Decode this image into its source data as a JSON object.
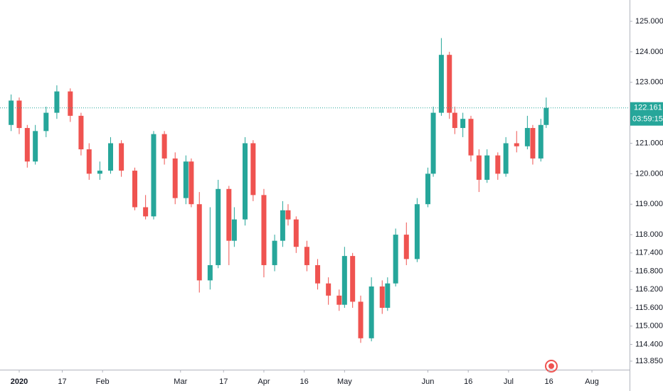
{
  "chart_data": {
    "type": "candlestick",
    "x": [
      -3,
      0,
      3,
      6,
      10,
      14,
      19,
      23,
      26,
      30,
      34,
      38,
      43,
      47,
      50,
      54,
      58,
      62,
      64,
      67,
      71,
      74,
      78,
      80,
      84,
      87,
      91,
      95,
      98,
      100,
      103,
      107,
      111,
      115,
      119,
      121,
      124,
      127,
      131,
      135,
      137,
      140,
      144,
      148,
      152,
      154,
      157,
      160,
      162,
      165,
      168,
      171,
      174,
      178,
      181,
      185,
      189,
      191,
      194,
      196
    ],
    "open": [
      121.6,
      122.4,
      121.5,
      120.4,
      121.4,
      122.0,
      122.7,
      121.9,
      120.8,
      120.0,
      120.1,
      121.0,
      120.1,
      118.9,
      118.6,
      121.3,
      120.5,
      119.2,
      120.4,
      119.0,
      116.5,
      117.0,
      119.5,
      117.8,
      118.5,
      121.0,
      119.3,
      117.0,
      117.8,
      118.8,
      118.5,
      117.6,
      117.0,
      116.4,
      116.0,
      115.7,
      117.3,
      115.8,
      114.6,
      116.3,
      115.6,
      116.4,
      118.0,
      117.2,
      119.0,
      120.0,
      122.0,
      123.9,
      122.0,
      121.5,
      121.8,
      120.6,
      119.8,
      120.6,
      120.0,
      121.0,
      120.9,
      121.5,
      120.5,
      121.6
    ],
    "high": [
      122.6,
      122.5,
      121.6,
      121.6,
      122.2,
      122.9,
      122.8,
      122.0,
      121.0,
      120.4,
      121.2,
      121.1,
      120.2,
      119.3,
      121.4,
      121.4,
      120.7,
      120.6,
      120.5,
      119.4,
      118.9,
      119.8,
      119.6,
      118.9,
      121.2,
      121.1,
      119.5,
      118.0,
      119.1,
      119.0,
      118.6,
      117.8,
      117.2,
      116.6,
      116.2,
      117.6,
      117.4,
      116.0,
      116.6,
      116.5,
      116.6,
      118.2,
      118.4,
      119.2,
      120.2,
      122.2,
      124.45,
      124.0,
      122.2,
      122.0,
      121.9,
      120.8,
      120.8,
      120.7,
      121.2,
      121.4,
      121.9,
      121.6,
      121.8,
      122.5
    ],
    "low": [
      121.4,
      121.3,
      120.2,
      120.3,
      121.2,
      121.8,
      121.7,
      120.6,
      119.8,
      119.8,
      120.0,
      119.9,
      118.8,
      118.5,
      118.5,
      120.3,
      119.0,
      119.0,
      118.9,
      116.1,
      116.2,
      116.9,
      117.0,
      117.6,
      118.3,
      119.1,
      116.6,
      116.8,
      117.6,
      118.3,
      117.4,
      116.8,
      116.2,
      115.7,
      115.5,
      115.6,
      115.6,
      114.45,
      114.5,
      115.4,
      115.5,
      116.3,
      117.0,
      117.1,
      118.9,
      119.9,
      121.9,
      121.8,
      121.3,
      121.2,
      120.4,
      119.4,
      119.7,
      119.8,
      119.9,
      120.7,
      120.8,
      120.3,
      120.4,
      121.5
    ],
    "close": [
      122.4,
      121.5,
      120.4,
      121.4,
      122.0,
      122.7,
      121.9,
      120.8,
      120.0,
      120.1,
      121.0,
      120.1,
      118.9,
      118.6,
      121.3,
      120.5,
      119.2,
      120.4,
      119.0,
      116.5,
      117.0,
      119.5,
      117.8,
      118.5,
      121.0,
      119.3,
      117.0,
      117.8,
      118.8,
      118.5,
      117.6,
      117.0,
      116.4,
      116.0,
      115.7,
      117.3,
      115.8,
      114.6,
      116.3,
      115.6,
      116.4,
      118.0,
      117.2,
      119.0,
      120.0,
      122.0,
      123.9,
      122.0,
      121.5,
      121.8,
      120.6,
      119.8,
      120.6,
      120.0,
      121.0,
      120.9,
      121.5,
      120.5,
      121.6,
      122.161
    ],
    "up_color": "#26a69a",
    "down_color": "#ef5350",
    "countdown": "03:59:15",
    "xlim": [
      -7.14,
      227
    ],
    "xticks": [
      {
        "value": 0,
        "label": "2020"
      },
      {
        "value": 16,
        "label": "17"
      },
      {
        "value": 31,
        "label": "Feb"
      },
      {
        "value": 60,
        "label": "Mar"
      },
      {
        "value": 76,
        "label": "17"
      },
      {
        "value": 91,
        "label": "Apr"
      },
      {
        "value": 106,
        "label": "16"
      },
      {
        "value": 121,
        "label": "May"
      },
      {
        "value": 152,
        "label": "Jun"
      },
      {
        "value": 167,
        "label": "16"
      },
      {
        "value": 182,
        "label": "Jul"
      },
      {
        "value": 197,
        "label": "16"
      },
      {
        "value": 213,
        "label": "Aug"
      }
    ],
    "ylim": [
      113.57,
      125.7
    ],
    "yticks": [
      {
        "value": 125,
        "label": "125.000"
      },
      {
        "value": 124,
        "label": "124.000"
      },
      {
        "value": 123,
        "label": "123.000"
      },
      {
        "value": 121,
        "label": "121.000"
      },
      {
        "value": 120,
        "label": "120.000"
      },
      {
        "value": 119,
        "label": "119.000"
      },
      {
        "value": 118,
        "label": "118.000"
      },
      {
        "value": 117.4,
        "label": "117.400"
      },
      {
        "value": 116.8,
        "label": "116.800"
      },
      {
        "value": 116.2,
        "label": "116.200"
      },
      {
        "value": 115.6,
        "label": "115.600"
      },
      {
        "value": 115,
        "label": "115.000"
      },
      {
        "value": 114.4,
        "label": "114.400"
      },
      {
        "value": 113.85,
        "label": "113.850"
      }
    ]
  }
}
